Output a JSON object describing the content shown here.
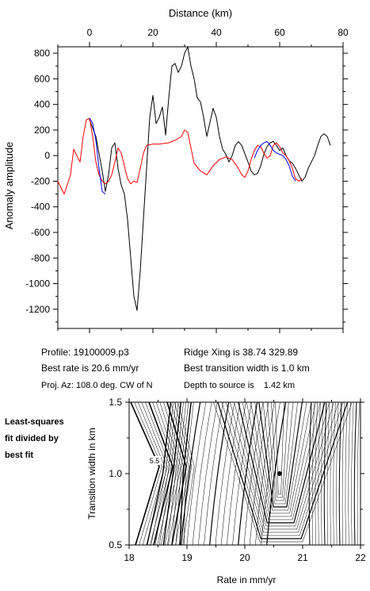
{
  "chart_data": [
    {
      "type": "line",
      "title": "",
      "xlabel": "Distance (km)",
      "ylabel": "Anomaly amplitude",
      "xlim": [
        -10,
        80
      ],
      "ylim": [
        -1350,
        850
      ],
      "x_ticks": [
        "0",
        "20",
        "40",
        "60",
        "80"
      ],
      "y_ticks": [
        "800",
        "600",
        "400",
        "200",
        "0",
        "-200",
        "-400",
        "-600",
        "-800",
        "-1000",
        "-1200"
      ],
      "grid": false,
      "series": [
        {
          "color": "#000000",
          "points": [
            [
              0,
              280
            ],
            [
              2,
              150
            ],
            [
              4,
              -120
            ],
            [
              5,
              -280
            ],
            [
              6,
              -150
            ],
            [
              7,
              60
            ],
            [
              8,
              100
            ],
            [
              9,
              -100
            ],
            [
              10,
              -230
            ],
            [
              11,
              -300
            ],
            [
              12,
              -500
            ],
            [
              13,
              -800
            ],
            [
              14,
              -1100
            ],
            [
              15,
              -1210
            ],
            [
              16,
              -900
            ],
            [
              17,
              -500
            ],
            [
              18,
              -100
            ],
            [
              19,
              300
            ],
            [
              20,
              470
            ],
            [
              21,
              250
            ],
            [
              22,
              300
            ],
            [
              23,
              380
            ],
            [
              24,
              160
            ],
            [
              25,
              450
            ],
            [
              26,
              700
            ],
            [
              27,
              720
            ],
            [
              28,
              650
            ],
            [
              29,
              700
            ],
            [
              30,
              800
            ],
            [
              31,
              850
            ],
            [
              32,
              700
            ],
            [
              33,
              600
            ],
            [
              34,
              450
            ],
            [
              35,
              420
            ],
            [
              36,
              300
            ],
            [
              37,
              150
            ],
            [
              38,
              260
            ],
            [
              39,
              370
            ],
            [
              40,
              300
            ],
            [
              41,
              150
            ],
            [
              42,
              50
            ],
            [
              43,
              10
            ],
            [
              44,
              -50
            ],
            [
              45,
              0
            ],
            [
              46,
              80
            ],
            [
              47,
              110
            ],
            [
              48,
              80
            ],
            [
              50,
              -50
            ],
            [
              51,
              -120
            ],
            [
              52,
              -150
            ],
            [
              53,
              -140
            ],
            [
              54,
              -80
            ],
            [
              55,
              10
            ],
            [
              56,
              70
            ],
            [
              57,
              100
            ],
            [
              58,
              110
            ],
            [
              59,
              80
            ],
            [
              60,
              40
            ],
            [
              61,
              60
            ],
            [
              62,
              0
            ],
            [
              63,
              -40
            ],
            [
              64,
              -60
            ],
            [
              65,
              -100
            ],
            [
              66,
              -150
            ],
            [
              67,
              -200
            ],
            [
              68,
              -170
            ],
            [
              69,
              -100
            ],
            [
              70,
              -50
            ],
            [
              71,
              0
            ],
            [
              72,
              80
            ],
            [
              73,
              150
            ],
            [
              74,
              170
            ],
            [
              75,
              150
            ],
            [
              76,
              80
            ]
          ]
        },
        {
          "color": "#ff0000",
          "points": [
            [
              -10,
              -200
            ],
            [
              -8,
              -300
            ],
            [
              -6,
              -150
            ],
            [
              -5,
              50
            ],
            [
              -4,
              0
            ],
            [
              -3,
              -50
            ],
            [
              -2,
              150
            ],
            [
              -1,
              280
            ],
            [
              0,
              290
            ],
            [
              1,
              150
            ],
            [
              2,
              -50
            ],
            [
              3,
              -150
            ],
            [
              4,
              -200
            ],
            [
              5,
              -220
            ],
            [
              6,
              -200
            ],
            [
              7,
              -150
            ],
            [
              8,
              -50
            ],
            [
              9,
              60
            ],
            [
              10,
              20
            ],
            [
              11,
              -80
            ],
            [
              12,
              -180
            ],
            [
              13,
              -220
            ],
            [
              14,
              -200
            ],
            [
              15,
              -210
            ],
            [
              16,
              -100
            ],
            [
              17,
              20
            ],
            [
              18,
              80
            ],
            [
              20,
              90
            ],
            [
              22,
              90
            ],
            [
              25,
              100
            ],
            [
              27,
              120
            ],
            [
              29,
              150
            ],
            [
              30,
              200
            ],
            [
              31,
              180
            ],
            [
              32,
              60
            ],
            [
              33,
              -60
            ],
            [
              35,
              -120
            ],
            [
              37,
              -150
            ],
            [
              39,
              -80
            ],
            [
              41,
              -30
            ],
            [
              43,
              -10
            ],
            [
              45,
              -30
            ],
            [
              47,
              -100
            ],
            [
              48,
              -150
            ],
            [
              49,
              -170
            ],
            [
              50,
              -120
            ],
            [
              51,
              -30
            ],
            [
              52,
              40
            ],
            [
              53,
              80
            ],
            [
              54,
              70
            ],
            [
              55,
              20
            ],
            [
              56,
              -20
            ],
            [
              57,
              0
            ],
            [
              58,
              80
            ],
            [
              59,
              100
            ],
            [
              60,
              70
            ],
            [
              61,
              20
            ],
            [
              62,
              0
            ],
            [
              63,
              -40
            ],
            [
              64,
              -100
            ],
            [
              65,
              -180
            ],
            [
              66,
              -200
            ],
            [
              67,
              -180
            ]
          ]
        },
        {
          "color": "#0000ff",
          "points": [
            [
              0,
              295
            ],
            [
              1,
              250
            ],
            [
              2,
              120
            ],
            [
              3,
              -100
            ],
            [
              4,
              -280
            ],
            [
              5,
              -300
            ]
          ]
        },
        {
          "color": "#0000ff",
          "points": [
            [
              52,
              -20
            ],
            [
              53,
              40
            ],
            [
              54,
              80
            ],
            [
              55,
              100
            ],
            [
              56,
              110
            ],
            [
              57,
              80
            ],
            [
              58,
              40
            ],
            [
              59,
              20
            ],
            [
              60,
              10
            ],
            [
              61,
              0
            ],
            [
              62,
              -30
            ],
            [
              63,
              -80
            ],
            [
              64,
              -160
            ],
            [
              65,
              -200
            ]
          ]
        }
      ]
    },
    {
      "type": "contour",
      "title": "",
      "xlabel": "Rate in mm/yr",
      "ylabel": "Transition width in km",
      "xlim": [
        18,
        22
      ],
      "ylim": [
        0.5,
        1.5
      ],
      "x_ticks": [
        "18",
        "19",
        "20",
        "21",
        "22"
      ],
      "y_ticks": [
        "0.5",
        "1.0",
        "1.5"
      ],
      "contour_label": "5.5",
      "best_fit": {
        "x": 20.6,
        "y": 1.0
      }
    }
  ],
  "info": {
    "profile": "Profile: 19100009.p3",
    "ridge_xing": "Ridge Xing is 38.74 329.89",
    "best_rate": "Best rate is 20.6 mm/yr",
    "best_width": "Best transition width is 1.0 km",
    "proj_az": "Proj. Az: 108.0 deg. CW of N",
    "depth": "Depth to source is    1.42 km"
  },
  "lsq_caption": [
    "Least-squares",
    "fit divided by",
    "best fit"
  ]
}
